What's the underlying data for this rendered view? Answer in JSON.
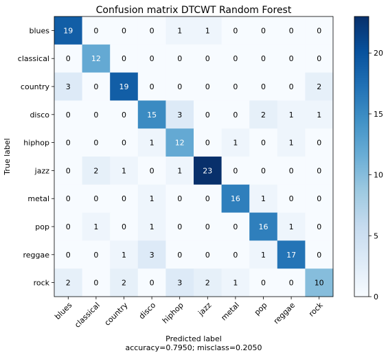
{
  "chart_data": {
    "type": "heatmap",
    "title": "Confusion matrix DTCWT Random Forest",
    "xlabel": "Predicted label",
    "xlabel_note": "accuracy=0.7950; misclass=0.2050",
    "ylabel": "True label",
    "labels": [
      "blues",
      "classical",
      "country",
      "disco",
      "hiphop",
      "jazz",
      "metal",
      "pop",
      "reggae",
      "rock"
    ],
    "matrix": [
      [
        19,
        0,
        0,
        0,
        1,
        1,
        0,
        0,
        0,
        0
      ],
      [
        0,
        12,
        0,
        0,
        0,
        0,
        0,
        0,
        0,
        0
      ],
      [
        3,
        0,
        19,
        0,
        0,
        0,
        0,
        0,
        0,
        2
      ],
      [
        0,
        0,
        0,
        15,
        3,
        0,
        0,
        2,
        1,
        1
      ],
      [
        0,
        0,
        0,
        1,
        12,
        0,
        1,
        0,
        1,
        0
      ],
      [
        0,
        2,
        1,
        0,
        1,
        23,
        0,
        0,
        0,
        0
      ],
      [
        0,
        0,
        0,
        1,
        0,
        0,
        16,
        1,
        0,
        0
      ],
      [
        0,
        1,
        0,
        1,
        0,
        0,
        0,
        16,
        1,
        0
      ],
      [
        0,
        0,
        1,
        3,
        0,
        0,
        0,
        1,
        17,
        0
      ],
      [
        2,
        0,
        2,
        0,
        3,
        2,
        1,
        0,
        0,
        10
      ]
    ],
    "colorscale": "Blues",
    "colorbar": {
      "range": [
        0,
        23
      ],
      "ticks": [
        0,
        5,
        10,
        15,
        20
      ]
    },
    "grid": false
  }
}
